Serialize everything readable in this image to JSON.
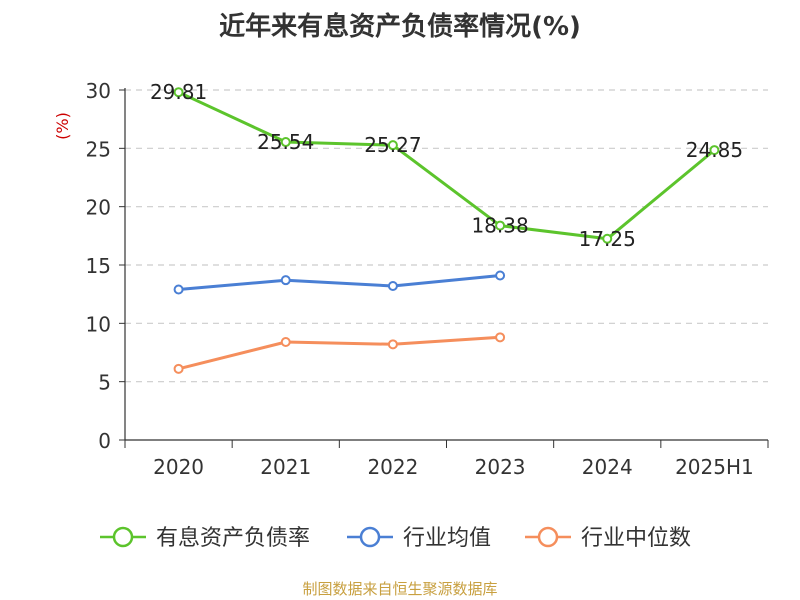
{
  "chart_data": {
    "type": "line",
    "title": "近年来有息资产负债率情况(%)",
    "ylabel": "(%)",
    "xlabel": "",
    "categories": [
      "2020",
      "2021",
      "2022",
      "2023",
      "2024",
      "2025H1"
    ],
    "ylim": [
      0,
      30
    ],
    "yticks": [
      "0",
      "5",
      "10",
      "15",
      "20",
      "25",
      "30"
    ],
    "grid": true,
    "legend_position": "bottom",
    "series": [
      {
        "name": "有息资产负债率",
        "color": "#5cc42c",
        "values": [
          29.81,
          25.54,
          25.27,
          18.38,
          17.25,
          24.85
        ],
        "labels": [
          "29.81",
          "25.54",
          "25.27",
          "18.38",
          "17.25",
          "24.85"
        ],
        "show_labels": true
      },
      {
        "name": "行业均值",
        "color": "#4a7fd4",
        "values": [
          12.9,
          13.7,
          13.2,
          14.1,
          null,
          null
        ],
        "show_labels": false
      },
      {
        "name": "行业中位数",
        "color": "#f58e5c",
        "values": [
          6.1,
          8.4,
          8.2,
          8.8,
          null,
          null
        ],
        "show_labels": false
      }
    ]
  },
  "footer": {
    "source": "制图数据来自恒生聚源数据库"
  }
}
